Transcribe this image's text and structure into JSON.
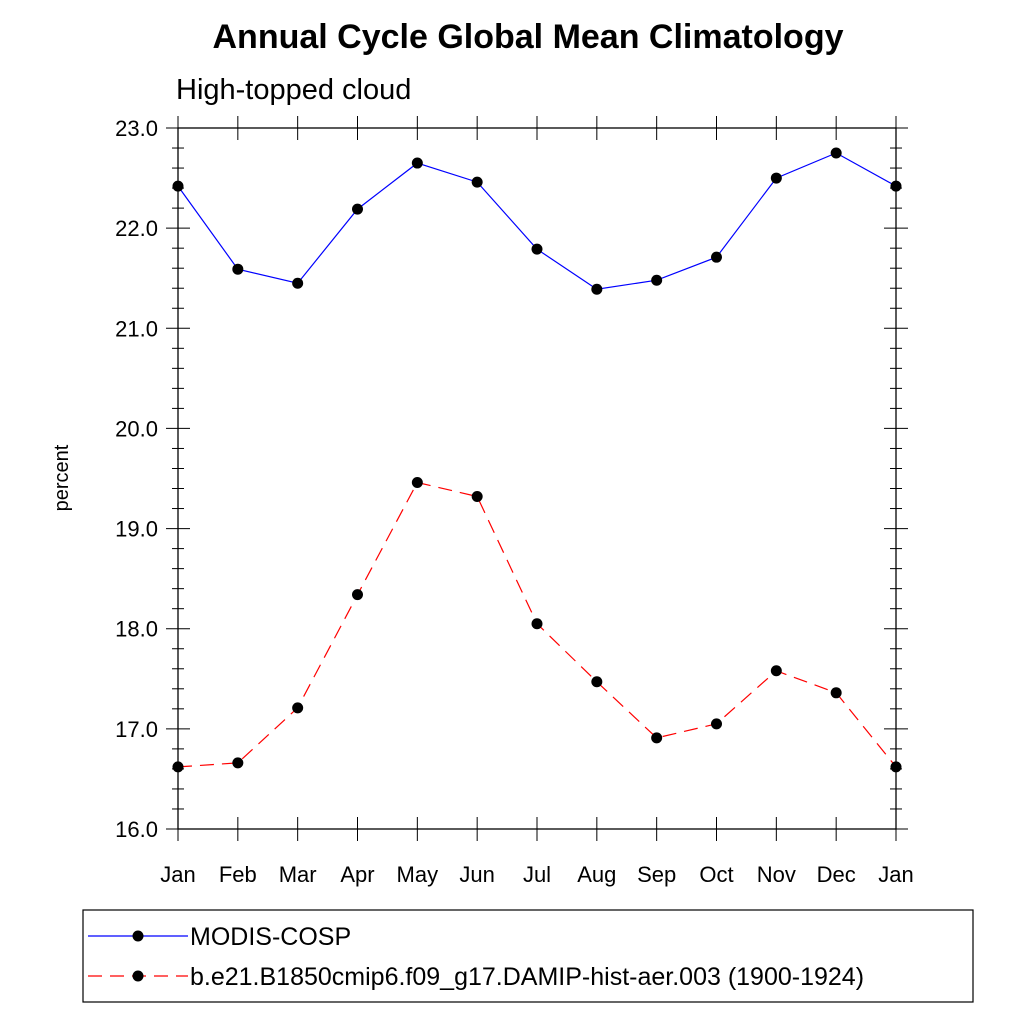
{
  "chart_data": {
    "type": "line",
    "title": "Annual Cycle Global Mean Climatology",
    "subtitle": "High-topped cloud",
    "xlabel": "",
    "ylabel": "percent",
    "categories": [
      "Jan",
      "Feb",
      "Mar",
      "Apr",
      "May",
      "Jun",
      "Jul",
      "Aug",
      "Sep",
      "Oct",
      "Nov",
      "Dec",
      "Jan"
    ],
    "ylim": [
      16.0,
      23.0
    ],
    "yticks": [
      "16.0",
      "17.0",
      "18.0",
      "19.0",
      "20.0",
      "21.0",
      "22.0",
      "23.0"
    ],
    "grid": false,
    "legend_position": "bottom",
    "series": [
      {
        "name": "MODIS-COSP",
        "color": "#0000ff",
        "line_style": "solid",
        "values": [
          22.42,
          21.59,
          21.45,
          22.19,
          22.65,
          22.46,
          21.79,
          21.39,
          21.48,
          21.71,
          22.5,
          22.75,
          22.42
        ]
      },
      {
        "name": "b.e21.B1850cmip6.f09_g17.DAMIP-hist-aer.003 (1900-1924)",
        "color": "#ff0000",
        "line_style": "dashed",
        "values": [
          16.62,
          16.66,
          17.21,
          18.34,
          19.46,
          19.32,
          18.05,
          17.47,
          16.91,
          17.05,
          17.58,
          17.36,
          16.62
        ]
      }
    ]
  }
}
